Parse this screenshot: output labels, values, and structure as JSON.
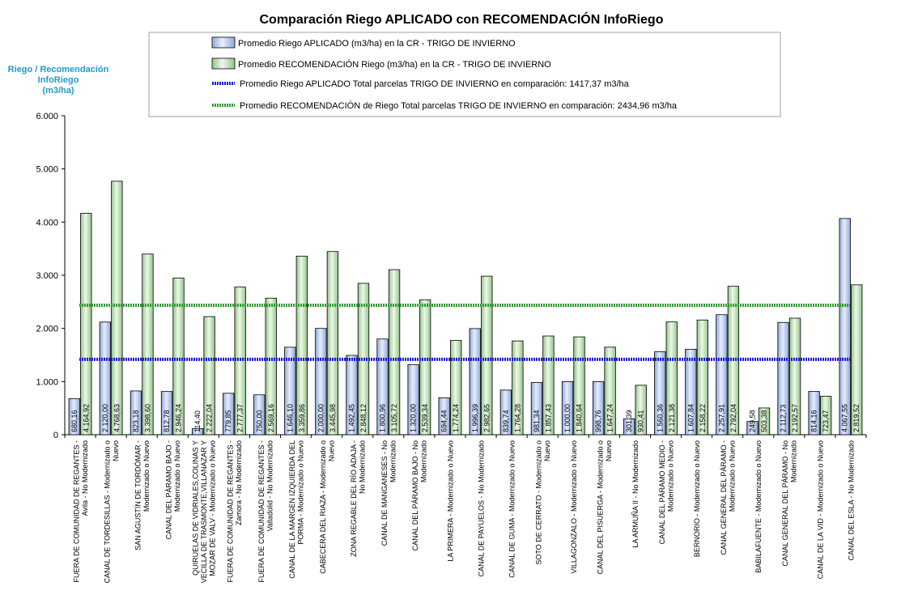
{
  "chart_data": {
    "type": "bar",
    "title": "Comparación Riego APLICADO con RECOMENDACIÓN InfoRiego",
    "ylabel_lines": [
      "Riego / Recomendación",
      "InfoRiego",
      "(m3/ha)"
    ],
    "ylim": [
      0,
      6000
    ],
    "yticks": [
      "0",
      "1.000",
      "2.000",
      "3.000",
      "4.000",
      "5.000",
      "6.000"
    ],
    "categories": [
      [
        "FUERA DE COMUNIDAD DE REGANTES -",
        "Avila - No Modernizado"
      ],
      [
        "CANAL DE TORDESILLAS - Modernizado o",
        "Nuevo"
      ],
      [
        "SAN AGUSTÍN DE TORDÓMAR -",
        "Modernizado o Nuevo"
      ],
      [
        "CANAL DEL PÁRAMO BAJO -",
        "Modernizado o Nuevo"
      ],
      [
        "QUIRUELAS DE VIDRIALES,COLINAS Y",
        "VECILLA DE TRASMONTE,VILLANAZAR Y",
        "MOZAR DE VALV - Modernizado o Nuevo"
      ],
      [
        "FUERA DE COMUNIDAD DE REGANTES -",
        "Zamora - No Modernizado"
      ],
      [
        "FUERA DE COMUNIDAD DE REGANTES -",
        "Valladolid - No Modernizado"
      ],
      [
        "CANAL DE LA MARGEN IZQUIERDA DEL",
        "PORMA - Modernizado o Nuevo"
      ],
      [
        "CABECERA DEL RIAZA - Modernizado o",
        "Nuevo"
      ],
      [
        "ZONA REGABLE DEL RÍO ADAJA -",
        "No Modernizado"
      ],
      [
        "CANAL DE MANGANESES - No",
        "Modernizado"
      ],
      [
        "CANAL DEL PÁRAMO BAJO - No",
        "Modernizado"
      ],
      [
        "LA PRIMERA - Modernizado o Nuevo"
      ],
      [
        "CANAL DE PAYUELOS - No Modernizado"
      ],
      [
        "CANAL DE GUMA - Modernizado o Nuevo"
      ],
      [
        "SOTO DE CERRATO - Modernizado o",
        "Nuevo"
      ],
      [
        "VILLAGONZALO - Modernizado o Nuevo"
      ],
      [
        "CANAL DEL PISUERGA - Modernizado o",
        "Nuevo"
      ],
      [
        "LA ARMUÑA II - No Modernizado"
      ],
      [
        "CANAL DEL PÁRAMO MEDIO -",
        "Modernizado o Nuevo"
      ],
      [
        "BERNORIO - Modernizado o Nuevo"
      ],
      [
        "CANAL GENERAL DEL PÁRAMO -",
        "Modernizado o Nuevo"
      ],
      [
        "BABILAFUENTE - Modernizado o Nuevo"
      ],
      [
        "CANAL GENERAL DEL PÁRAMO - No",
        "Modernizado"
      ],
      [
        "CANAL DE LA VID - Modernizado o Nuevo"
      ],
      [
        "CANAL DEL ESLA - No Modernizado"
      ]
    ],
    "series": [
      {
        "name": "Promedio Riego APLICADO (m3/ha) en la CR - TRIGO DE INVIERNO",
        "color": "#b8cbee",
        "values": [
          680.16,
          2120.0,
          823.18,
          812.78,
          114.4,
          779.85,
          750.0,
          1646.1,
          2000.0,
          1492.45,
          1800.96,
          1320.0,
          694.44,
          1996.39,
          839.74,
          981.34,
          1000.0,
          998.76,
          301.39,
          1560.36,
          1607.84,
          2257.91,
          249.58,
          2112.73,
          814.16,
          4067.55
        ],
        "labels": [
          "680,16",
          "2.120,00",
          "823,18",
          "812,78",
          "114,40",
          "779,85",
          "750,00",
          "1.646,10",
          "2.000,00",
          "1.492,45",
          "1.800,96",
          "1.320,00",
          "694,44",
          "1.996,39",
          "839,74",
          "981,34",
          "1.000,00",
          "998,76",
          "301,39",
          "1.560,36",
          "1.607,84",
          "2.257,91",
          "249,58",
          "2.112,73",
          "814,16",
          "4.067,55"
        ]
      },
      {
        "name": "Promedio RECOMENDACIÓN Riego (m3/ha) en la CR - TRIGO DE INVIERNO",
        "color": "#c8e6c0",
        "values": [
          4164.92,
          4768.63,
          3398.6,
          2946.24,
          2222.04,
          2777.37,
          2569.16,
          3359.86,
          3445.98,
          2848.12,
          3105.72,
          2539.34,
          1774.24,
          2982.65,
          1764.28,
          1857.43,
          1840.64,
          1647.24,
          930.41,
          2121.38,
          2158.22,
          2792.04,
          503.38,
          2192.57,
          723.47,
          2819.52
        ],
        "labels": [
          "4.164,92",
          "4.768,63",
          "3.398,60",
          "2.946,24",
          "2.222,04",
          "2.777,37",
          "2.569,16",
          "3.359,86",
          "3.445,98",
          "2.848,12",
          "3.105,72",
          "2.539,34",
          "1.774,24",
          "2.982,65",
          "1.764,28",
          "1.857,43",
          "1.840,64",
          "1.647,24",
          "930,41",
          "2.121,38",
          "2.158,22",
          "2.792,04",
          "503,38",
          "2.192,57",
          "723,47",
          "2.819,52"
        ]
      }
    ],
    "reference_lines": [
      {
        "name": "Promedio Riego APLICADO Total parcelas TRIGO DE INVIERNO en comparación: 1417,37 m3/ha",
        "value": 1417.37,
        "color": "#1a1acc"
      },
      {
        "name": "Promedio RECOMENDACIÓN de Riego Total parcelas TRIGO DE INVIERNO en comparación: 2434,96 m3/ha",
        "value": 2434.96,
        "color": "#2e9a2e"
      }
    ],
    "legend": "top",
    "grid": false
  }
}
